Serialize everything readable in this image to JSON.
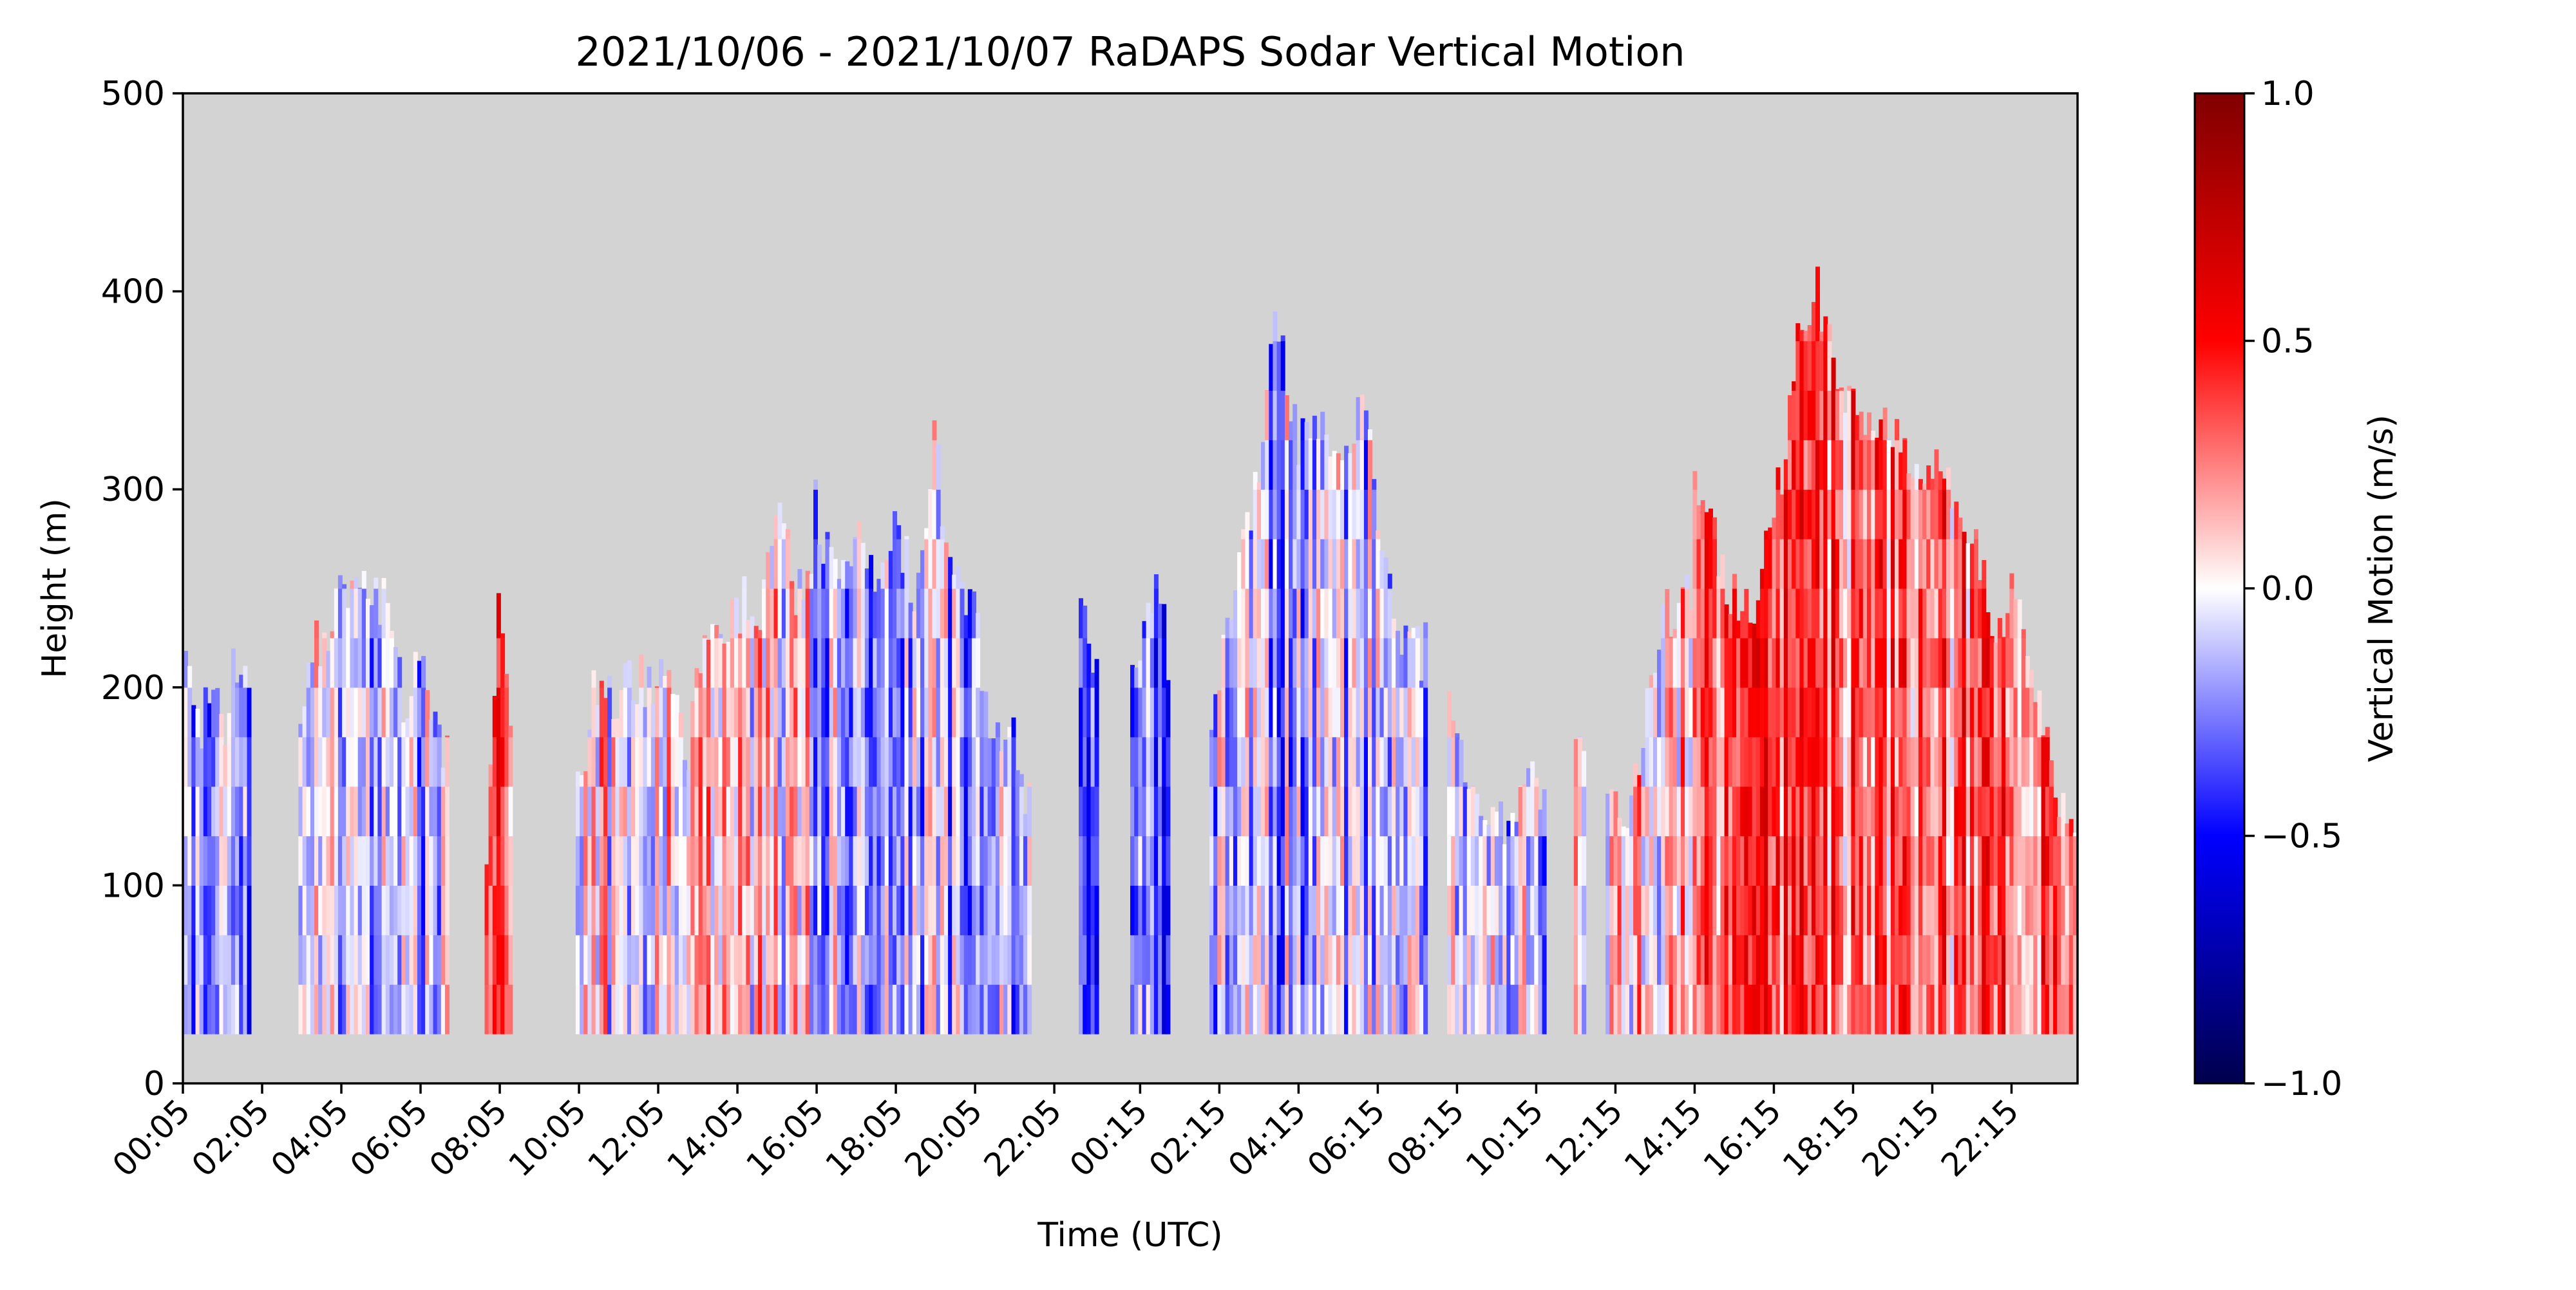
{
  "chart_data": {
    "type": "heatmap",
    "title": "2021/10/06 - 2021/10/07 RaDAPS Sodar Vertical Motion",
    "xlabel": "Time (UTC)",
    "ylabel": "Height (m)",
    "colorbar_label": "Vertical Motion (m/s)",
    "colormap": "seismic",
    "background_color": "#d3d3d3",
    "x_range_hours": [
      0.083,
      47.917
    ],
    "x_tick_labels": [
      "00:05",
      "02:05",
      "04:05",
      "06:05",
      "08:05",
      "10:05",
      "12:05",
      "14:05",
      "16:05",
      "18:05",
      "20:05",
      "22:05",
      "00:15",
      "02:15",
      "04:15",
      "06:15",
      "08:15",
      "10:15",
      "12:15",
      "14:15",
      "16:15",
      "18:15",
      "20:15",
      "22:15"
    ],
    "x_tick_hours": [
      0.083,
      2.083,
      4.083,
      6.083,
      8.083,
      10.083,
      12.083,
      14.083,
      16.083,
      18.083,
      20.083,
      22.083,
      24.25,
      26.25,
      28.25,
      30.25,
      32.25,
      34.25,
      36.25,
      38.25,
      40.25,
      42.25,
      44.25,
      46.25
    ],
    "ylim": [
      0,
      500
    ],
    "y_ticks": [
      0,
      100,
      200,
      300,
      400,
      500
    ],
    "clim": [
      -1.0,
      1.0
    ],
    "colorbar_ticks": [
      1.0,
      0.5,
      0.0,
      -0.5,
      -1.0
    ],
    "colorbar_tick_labels": [
      "1.0",
      "0.5",
      "0.0",
      "−0.5",
      "−1.0"
    ],
    "min_height_m": 25,
    "data_segments": [
      {
        "start_h": 0.0,
        "end_h": 1.8,
        "top_m": [
          235,
          205,
          180,
          200,
          175,
          205,
          200,
          205
        ],
        "mean_w": -0.25
      },
      {
        "start_h": 3.0,
        "end_h": 6.8,
        "top_m": [
          190,
          220,
          235,
          250,
          245,
          250,
          235,
          190,
          220,
          175,
          160
        ],
        "mean_w": -0.1
      },
      {
        "start_h": 7.7,
        "end_h": 8.4,
        "top_m": [
          115,
          200,
          250,
          210,
          140
        ],
        "mean_w": 0.3
      },
      {
        "start_h": 10.0,
        "end_h": 16.0,
        "top_m": [
          145,
          205,
          190,
          205,
          205,
          200,
          160,
          235,
          220,
          245,
          235,
          295,
          245,
          250
        ],
        "mean_w": 0.05
      },
      {
        "start_h": 16.0,
        "end_h": 21.5,
        "top_m": [
          295,
          250,
          280,
          250,
          280,
          250,
          325,
          250,
          235,
          175,
          175,
          130
        ],
        "mean_w": -0.15
      },
      {
        "start_h": 22.7,
        "end_h": 23.2,
        "top_m": [
          250,
          230,
          180
        ],
        "mean_w": -0.35
      },
      {
        "start_h": 24.0,
        "end_h": 25.0,
        "top_m": [
          220,
          230,
          250,
          200
        ],
        "mean_w": -0.3
      },
      {
        "start_h": 26.0,
        "end_h": 31.5,
        "top_m": [
          175,
          255,
          295,
          385,
          325,
          325,
          325,
          340,
          255,
          215,
          220
        ],
        "mean_w": -0.15
      },
      {
        "start_h": 32.0,
        "end_h": 34.5,
        "top_m": [
          190,
          145,
          145,
          130,
          160,
          145
        ],
        "mean_w": -0.1
      },
      {
        "start_h": 35.2,
        "end_h": 35.5,
        "top_m": [
          175,
          150
        ],
        "mean_w": 0.05
      },
      {
        "start_h": 36.0,
        "end_h": 38.2,
        "top_m": [
          145,
          130,
          175,
          235,
          235,
          250
        ],
        "mean_w": 0.1
      },
      {
        "start_h": 38.2,
        "end_h": 40.2,
        "top_m": [
          310,
          280,
          250,
          235,
          250,
          280
        ],
        "mean_w": 0.35
      },
      {
        "start_h": 40.2,
        "end_h": 48.0,
        "top_m": [
          280,
          370,
          400,
          355,
          325,
          340,
          310,
          310,
          300,
          280,
          235,
          245,
          190,
          145,
          130
        ],
        "mean_w": 0.3
      }
    ]
  }
}
